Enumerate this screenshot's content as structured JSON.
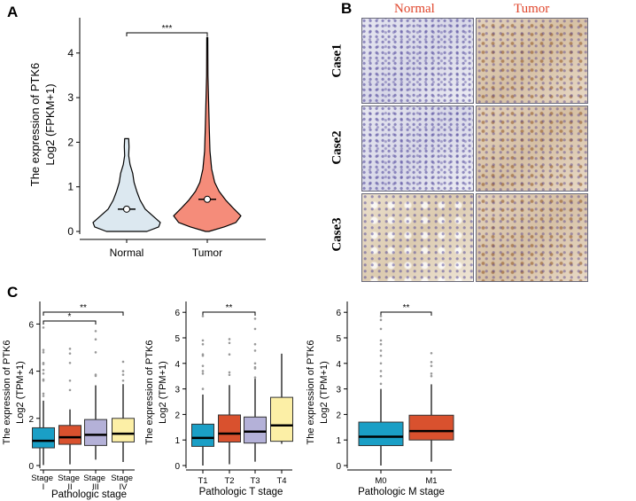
{
  "panels": {
    "a": "A",
    "b": "B",
    "c": "C"
  },
  "colors": {
    "normal": "#dce8f0",
    "tumor": "#f58c7a",
    "blue": "#1a9fc6",
    "red": "#d9512e",
    "lavender": "#b4b1d8",
    "yellow": "#fcefa6"
  },
  "ihc": {
    "columns": [
      "Normal",
      "Tumor"
    ],
    "rows": [
      "Case1",
      "Case2",
      "Case3"
    ]
  },
  "chart_data": [
    {
      "type": "violin",
      "title": "",
      "ylabel_line1": "The expression of PTK6",
      "ylabel_line2": "Log2 (FPKM+1)",
      "ylim": [
        0,
        4.5
      ],
      "yticks": [
        "0",
        "1",
        "2",
        "3",
        "4"
      ],
      "categories": [
        "Normal",
        "Tumor"
      ],
      "series": [
        {
          "name": "Normal",
          "median": 0.5,
          "max": 2.08,
          "density": [
            [
              0,
              0.6
            ],
            [
              0.1,
              0.95
            ],
            [
              0.2,
              1.0
            ],
            [
              0.3,
              0.85
            ],
            [
              0.5,
              0.55
            ],
            [
              0.7,
              0.4
            ],
            [
              0.9,
              0.3
            ],
            [
              1.1,
              0.22
            ],
            [
              1.3,
              0.18
            ],
            [
              1.5,
              0.1
            ],
            [
              1.7,
              0.06
            ],
            [
              1.9,
              0.07
            ],
            [
              2.08,
              0.06
            ]
          ]
        },
        {
          "name": "Tumor",
          "median": 0.72,
          "max": 4.35,
          "density": [
            [
              0,
              0.05
            ],
            [
              0.1,
              0.5
            ],
            [
              0.2,
              0.85
            ],
            [
              0.35,
              1.0
            ],
            [
              0.5,
              0.8
            ],
            [
              0.7,
              0.55
            ],
            [
              0.9,
              0.35
            ],
            [
              1.1,
              0.22
            ],
            [
              1.4,
              0.13
            ],
            [
              1.8,
              0.08
            ],
            [
              2.3,
              0.06
            ],
            [
              2.9,
              0.04
            ],
            [
              3.5,
              0.02
            ],
            [
              4.35,
              0.015
            ]
          ]
        }
      ],
      "significance": [
        {
          "from": "Normal",
          "to": "Tumor",
          "label": "***"
        }
      ]
    },
    {
      "type": "box",
      "xlabel": "Pathologic stage",
      "ylabel_line1": "The expression of PTK6",
      "ylabel_line2": "Log2 (TPM+1)",
      "ylim": [
        0,
        6.8
      ],
      "yticks": [
        "0",
        "2",
        "4",
        "6"
      ],
      "categories": [
        "Stage I",
        "Stage II",
        "Stage III",
        "Stage IV"
      ],
      "boxes": [
        {
          "q1": 0.75,
          "median": 1.05,
          "q3": 1.6,
          "low": 0.02,
          "high": 2.75,
          "outliers": [
            2.95,
            3.05,
            3.6,
            3.65,
            3.9,
            4.05,
            4.3,
            4.35,
            4.8,
            4.9,
            5.85
          ],
          "color": "blue"
        },
        {
          "q1": 0.9,
          "median": 1.2,
          "q3": 1.7,
          "low": 0.05,
          "high": 2.38,
          "outliers": [
            3.2,
            3.6,
            4.35,
            4.75,
            4.95
          ],
          "color": "red"
        },
        {
          "q1": 0.85,
          "median": 1.3,
          "q3": 1.95,
          "low": 0.25,
          "high": 3.4,
          "outliers": [
            3.8,
            3.85,
            4.8,
            5.35,
            5.7
          ],
          "color": "lavender"
        },
        {
          "q1": 1.0,
          "median": 1.35,
          "q3": 2.0,
          "low": 0.15,
          "high": 3.45,
          "outliers": [
            3.6,
            3.85,
            4.0,
            4.4
          ],
          "color": "yellow"
        }
      ],
      "significance": [
        {
          "from": "Stage I",
          "to": "Stage IV",
          "label": "**"
        },
        {
          "from": "Stage I",
          "to": "Stage III",
          "label": "*"
        }
      ]
    },
    {
      "type": "box",
      "xlabel": "Pathologic T stage",
      "ylabel_line1": "The expression of PTK6",
      "ylabel_line2": "Log2 (TPM+1)",
      "ylim": [
        0,
        6.4
      ],
      "yticks": [
        "0",
        "1",
        "2",
        "3",
        "4",
        "5",
        "6"
      ],
      "categories": [
        "T1",
        "T2",
        "T3",
        "T4"
      ],
      "boxes": [
        {
          "q1": 0.75,
          "median": 1.08,
          "q3": 1.62,
          "low": 0.0,
          "high": 2.78,
          "outliers": [
            3.0,
            3.6,
            3.7,
            3.9,
            4.3,
            4.35,
            4.75,
            4.9,
            5.85
          ],
          "color": "blue"
        },
        {
          "q1": 0.92,
          "median": 1.25,
          "q3": 1.98,
          "low": 0.05,
          "high": 3.15,
          "outliers": [
            3.55,
            3.65,
            4.35,
            4.8,
            4.95
          ],
          "color": "red"
        },
        {
          "q1": 0.88,
          "median": 1.33,
          "q3": 1.9,
          "low": 0.15,
          "high": 3.4,
          "outliers": [
            3.45,
            3.8,
            3.85,
            4.0,
            4.5,
            4.75,
            5.35,
            5.75
          ],
          "color": "lavender"
        },
        {
          "q1": 0.95,
          "median": 1.57,
          "q3": 2.67,
          "low": 0.85,
          "high": 4.38,
          "outliers": [],
          "color": "yellow"
        }
      ],
      "significance": [
        {
          "from": "T1",
          "to": "T3",
          "label": "**"
        }
      ]
    },
    {
      "type": "box",
      "xlabel": "Pathologic M stage",
      "ylabel_line1": "The expression of PTK6",
      "ylabel_line2": "Log2 (TPM+1)",
      "ylim": [
        0,
        6.4
      ],
      "yticks": [
        "0",
        "1",
        "2",
        "3",
        "4",
        "5",
        "6"
      ],
      "categories": [
        "M0",
        "M1"
      ],
      "boxes": [
        {
          "q1": 0.78,
          "median": 1.13,
          "q3": 1.7,
          "low": 0.0,
          "high": 3.0,
          "outliers": [
            3.2,
            3.5,
            3.7,
            4.0,
            4.3,
            4.5,
            4.75,
            4.9,
            5.35,
            5.7,
            5.85
          ],
          "color": "blue"
        },
        {
          "q1": 1.0,
          "median": 1.35,
          "q3": 1.97,
          "low": 0.15,
          "high": 3.18,
          "outliers": [
            3.5,
            3.6,
            3.9,
            4.05,
            4.4
          ],
          "color": "red"
        }
      ],
      "significance": [
        {
          "from": "M0",
          "to": "M1",
          "label": "**"
        }
      ]
    }
  ]
}
